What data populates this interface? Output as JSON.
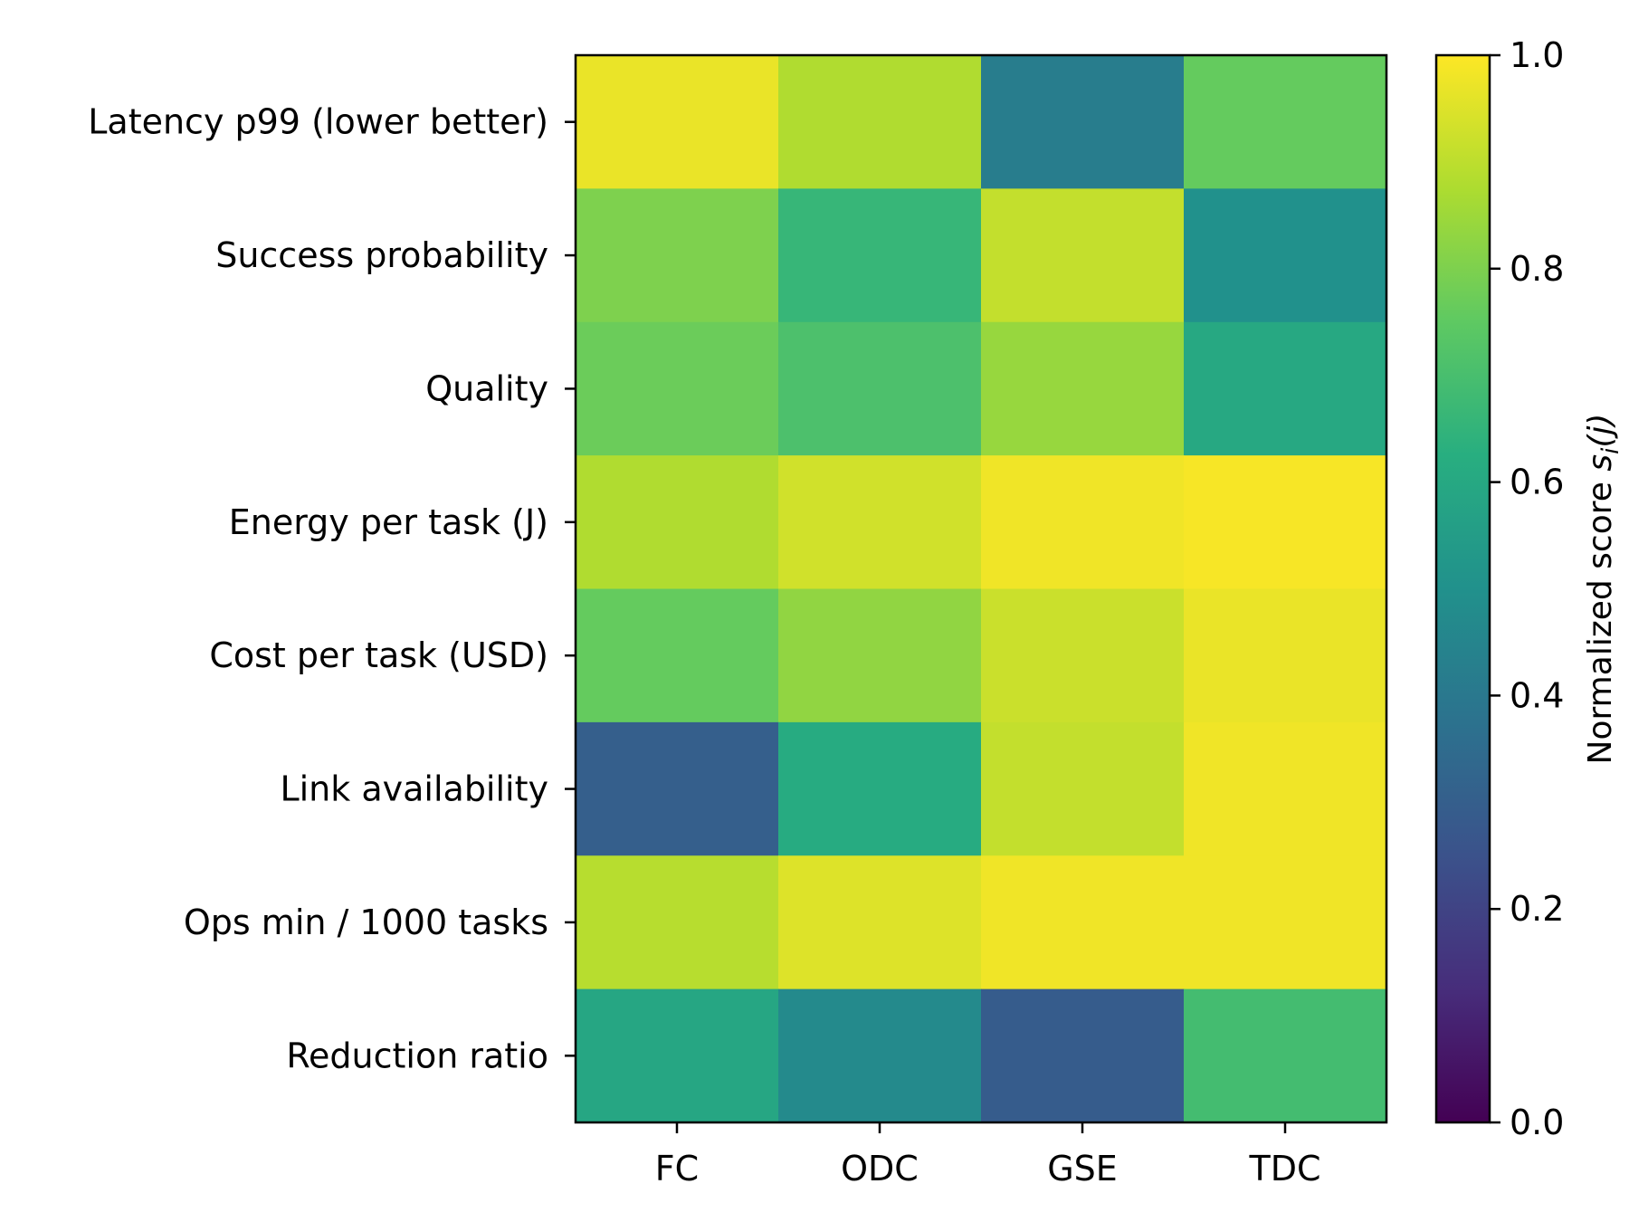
{
  "chart_data": {
    "type": "heatmap",
    "title": "",
    "xlabel": "",
    "ylabel": "",
    "x_categories": [
      "FC",
      "ODC",
      "GSE",
      "TDC"
    ],
    "y_categories": [
      "Latency p99 (lower better)",
      "Success probability",
      "Quality",
      "Energy per task (J)",
      "Cost per task (USD)",
      "Link availability",
      "Ops min / 1000 tasks",
      "Reduction ratio"
    ],
    "values": [
      [
        0.97,
        0.88,
        0.42,
        0.76
      ],
      [
        0.8,
        0.66,
        0.91,
        0.5
      ],
      [
        0.77,
        0.71,
        0.84,
        0.6
      ],
      [
        0.88,
        0.93,
        0.98,
        0.99
      ],
      [
        0.76,
        0.83,
        0.92,
        0.97
      ],
      [
        0.3,
        0.61,
        0.91,
        0.98
      ],
      [
        0.89,
        0.95,
        0.98,
        0.98
      ],
      [
        0.59,
        0.47,
        0.29,
        0.69
      ]
    ],
    "colormap": "viridis",
    "vmin": 0.0,
    "vmax": 1.0,
    "colorbar": {
      "label": "Normalized score s_i(j)",
      "label_main": "Normalized score ",
      "label_sym": "s",
      "label_sub": "i",
      "label_arg": "(j)",
      "ticks": [
        0.0,
        0.2,
        0.4,
        0.6,
        0.8,
        1.0
      ],
      "tick_labels": [
        "0.0",
        "0.2",
        "0.4",
        "0.6",
        "0.8",
        "1.0"
      ]
    },
    "grid": false,
    "legend": "colorbar right"
  }
}
